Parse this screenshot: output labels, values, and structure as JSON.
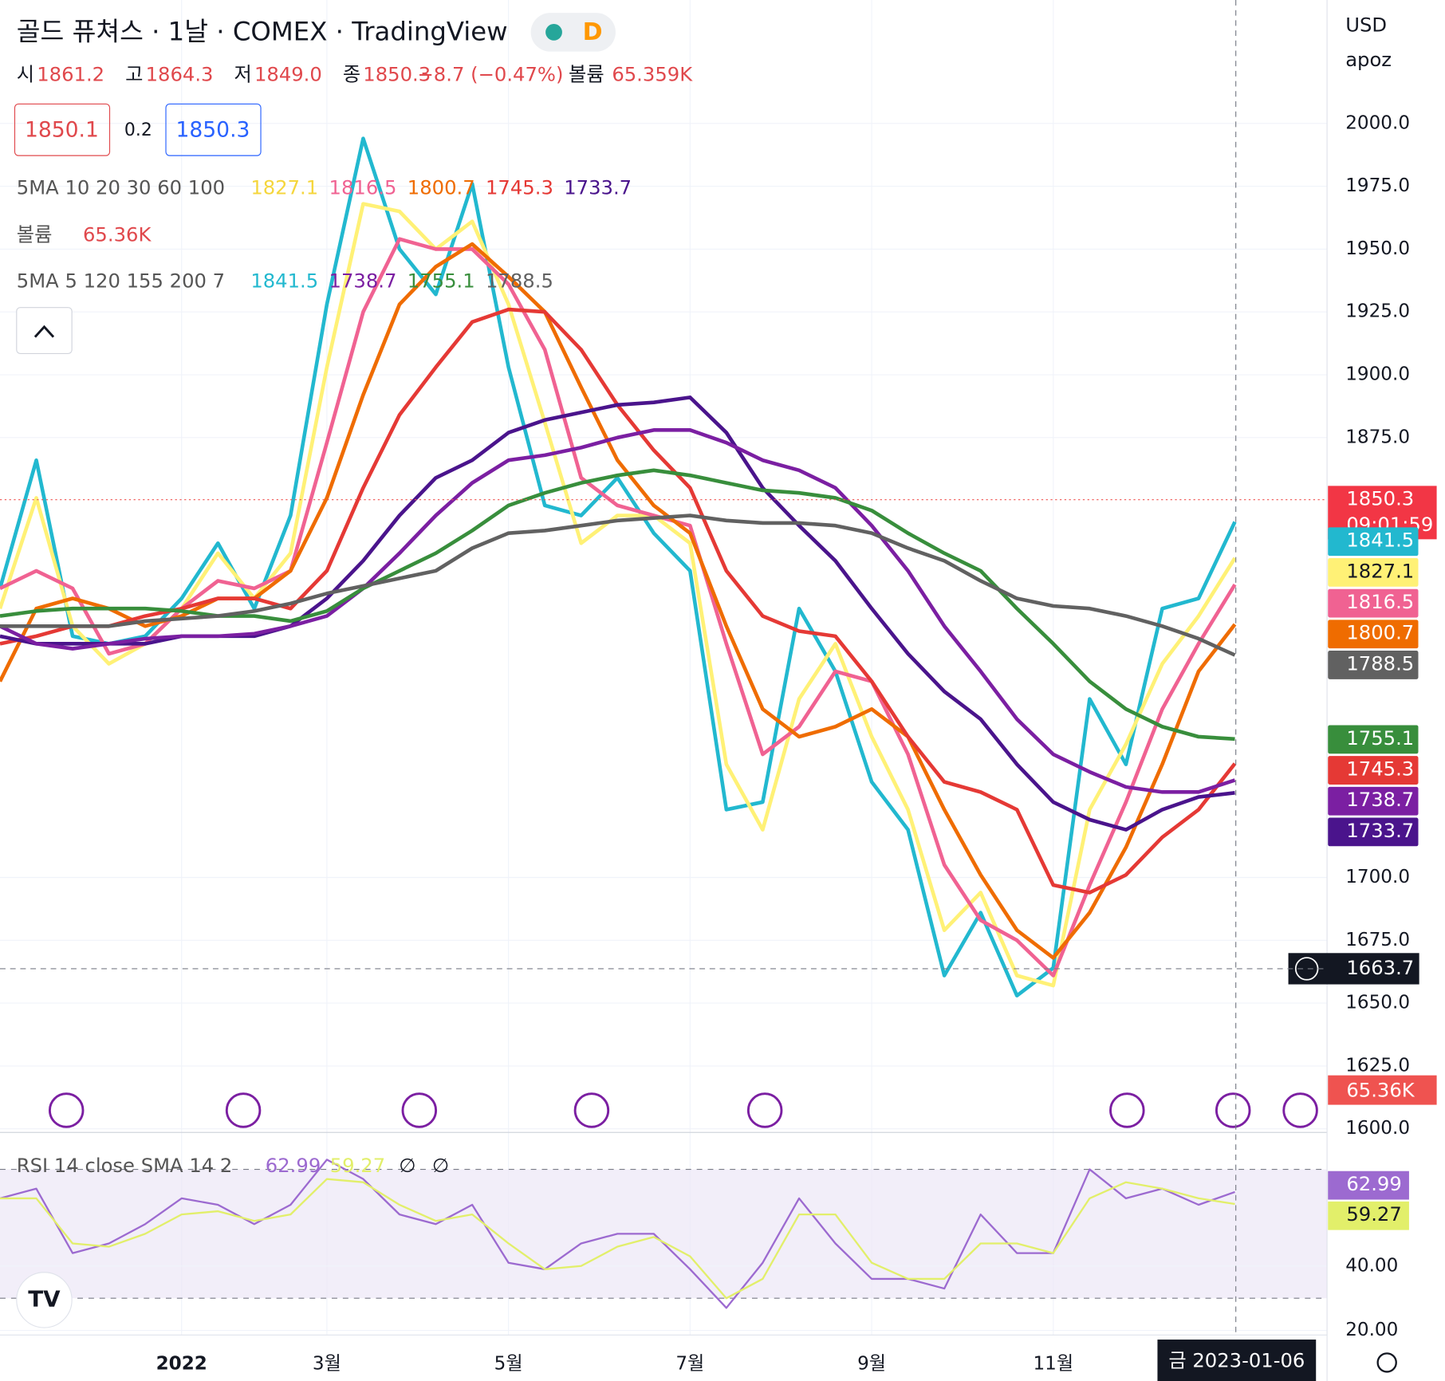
{
  "header": {
    "title": "골드 퓨쳐스 · 1날 · COMEX · TradingView",
    "interval": "D",
    "ohlc": [
      {
        "label": "시",
        "value": "1861.2"
      },
      {
        "label": "고",
        "value": "1864.3"
      },
      {
        "label": "저",
        "value": "1849.0"
      },
      {
        "label": "종",
        "value": "1850.3"
      }
    ],
    "change": "−8.7 (−0.47%)",
    "volume_label": "볼륨",
    "volume": "65.359K",
    "bid": "1850.1",
    "spread": "0.2",
    "ask": "1850.3",
    "currency": "USD",
    "user": "apoz",
    "ma_legend_1": "5MA 10 20 30 60 100",
    "volume_legend": "볼륨",
    "volume_value": "65.36K",
    "ma_legend_2": "5MA 5 120 155 200 7",
    "rsi_legend": "RSI 14 close SMA 14 2",
    "rsi_icons": [
      "∅",
      "∅"
    ],
    "last_time": "09:01:59",
    "crosshair_date": "금 2023-01-06"
  },
  "chart_data": [
    {
      "type": "line",
      "categories": [
        null,
        null,
        null,
        null,
        null,
        "2022",
        null,
        null,
        null,
        "3월",
        null,
        null,
        null,
        null,
        "5월",
        null,
        null,
        null,
        null,
        "7월",
        null,
        null,
        null,
        null,
        "9월",
        null,
        null,
        null,
        null,
        "11월",
        null,
        null,
        null,
        null,
        null
      ],
      "ylim": [
        1599.3,
        2049.1
      ],
      "yticks": [
        {
          "value": 2000,
          "label": "2000.0"
        },
        {
          "value": 1975,
          "label": "1975.0"
        },
        {
          "value": 1950,
          "label": "1950.0"
        },
        {
          "value": 1925,
          "label": "1925.0"
        },
        {
          "value": 1900,
          "label": "1900.0"
        },
        {
          "value": 1875,
          "label": "1875.0"
        },
        {
          "value": 1700,
          "label": "1700.0"
        },
        {
          "value": 1675,
          "label": "1675.0"
        },
        {
          "value": 1650,
          "label": "1650.0"
        },
        {
          "value": 1625,
          "label": "1625.0"
        },
        {
          "value": 1600,
          "label": "1600.0"
        }
      ],
      "grid": true,
      "last_price": 1850.3,
      "crosshair_price": 1663.7,
      "series": [
        {
          "color": "#22b8cf",
          "values": [
            1815,
            1866,
            1796,
            1793,
            1796,
            1811,
            1833,
            1807,
            1844,
            1928,
            1994,
            1950,
            1932,
            1976,
            1903,
            1848,
            1844,
            1859,
            1837,
            1822,
            1727,
            1730,
            1807,
            1782,
            1738,
            1719,
            1661,
            1686,
            1653,
            1664,
            1771,
            1745,
            1807,
            1811,
            1841.5
          ]
        },
        {
          "color": "#fff176",
          "values": [
            1807,
            1851,
            1800,
            1785,
            1793,
            1807,
            1829,
            1811,
            1829,
            1903,
            1968,
            1965,
            1950,
            1961,
            1928,
            1881,
            1833,
            1844,
            1844,
            1833,
            1745,
            1719,
            1771,
            1793,
            1756,
            1727,
            1679,
            1694,
            1661,
            1657,
            1727,
            1753,
            1785,
            1804,
            1827.1
          ]
        },
        {
          "color": "#f06292",
          "values": [
            1815,
            1822,
            1815,
            1789,
            1793,
            1807,
            1818,
            1815,
            1822,
            1873,
            1925,
            1954,
            1950,
            1950,
            1936,
            1910,
            1859,
            1848,
            1844,
            1840,
            1793,
            1749,
            1760,
            1782,
            1778,
            1749,
            1705,
            1683,
            1675,
            1661,
            1697,
            1730,
            1767,
            1793,
            1816.5
          ]
        },
        {
          "color": "#ef6c00",
          "values": [
            1778,
            1807,
            1811,
            1807,
            1800,
            1804,
            1811,
            1811,
            1822,
            1851,
            1892,
            1928,
            1943,
            1952,
            1939,
            1925,
            1895,
            1866,
            1848,
            1837,
            1800,
            1767,
            1756,
            1760,
            1767,
            1756,
            1727,
            1701,
            1679,
            1668,
            1686,
            1712,
            1745,
            1782,
            1800.7
          ]
        },
        {
          "color": "#e53935",
          "values": [
            1793,
            1796,
            1800,
            1800,
            1804,
            1807,
            1811,
            1811,
            1807,
            1822,
            1855,
            1884,
            1903,
            1921,
            1926,
            1925,
            1910,
            1888,
            1870,
            1855,
            1822,
            1804,
            1798,
            1796,
            1778,
            1756,
            1738,
            1734,
            1727,
            1697,
            1694,
            1701,
            1716,
            1727,
            1745.3
          ]
        },
        {
          "color": "#4a148c",
          "values": [
            1796,
            1793,
            1793,
            1793,
            1793,
            1796,
            1796,
            1796,
            1800,
            1811,
            1826,
            1844,
            1859,
            1866,
            1877,
            1882,
            1885,
            1888,
            1889,
            1891,
            1877,
            1855,
            1840,
            1826,
            1807,
            1789,
            1774,
            1763,
            1745,
            1730,
            1723,
            1719,
            1727,
            1732,
            1733.7
          ]
        },
        {
          "color": "#7b1fa2",
          "values": [
            1800,
            1793,
            1791,
            1793,
            1795,
            1796,
            1796,
            1797,
            1800,
            1804,
            1815,
            1829,
            1844,
            1857,
            1866,
            1868,
            1871,
            1875,
            1878,
            1878,
            1873,
            1866,
            1862,
            1855,
            1840,
            1822,
            1800,
            1782,
            1763,
            1749,
            1742,
            1736,
            1734,
            1734,
            1738.7
          ]
        },
        {
          "color": "#388e3c",
          "values": [
            1804,
            1806,
            1807,
            1807,
            1807,
            1806,
            1804,
            1804,
            1802,
            1806,
            1815,
            1822,
            1829,
            1838,
            1848,
            1853,
            1857,
            1860,
            1862,
            1860,
            1857,
            1854,
            1853,
            1851,
            1846,
            1837,
            1829,
            1822,
            1807,
            1793,
            1778,
            1767,
            1760,
            1756,
            1755.1
          ]
        },
        {
          "color": "#616161",
          "values": [
            1800,
            1800,
            1800,
            1800,
            1802,
            1803,
            1804,
            1806,
            1809,
            1813,
            1816,
            1819,
            1822,
            1831,
            1837,
            1838,
            1840,
            1842,
            1843,
            1844,
            1842,
            1841,
            1841,
            1840,
            1837,
            1831,
            1826,
            1818,
            1811,
            1808,
            1807,
            1804,
            1800,
            1795,
            1788.5
          ]
        }
      ]
    },
    {
      "type": "line",
      "ylim": [
        18.6,
        80.9
      ],
      "yticks": [
        {
          "value": 40,
          "label": "40.00"
        },
        {
          "value": 20,
          "label": "20.00"
        }
      ],
      "bands": [
        30,
        70
      ],
      "series": [
        {
          "color": "#9c6ad0",
          "values": [
            61,
            64,
            44,
            47,
            53,
            61,
            59,
            53,
            59,
            73,
            67,
            56,
            53,
            59,
            41,
            39,
            47,
            50,
            50,
            39,
            27,
            41,
            61,
            47,
            36,
            36,
            33,
            56,
            44,
            44,
            70,
            61,
            64,
            59,
            62.99
          ]
        },
        {
          "color": "#e2ef6a",
          "values": [
            61,
            61,
            47,
            46,
            50,
            56,
            57,
            54,
            56,
            67,
            66,
            59,
            54,
            56,
            47,
            39,
            40,
            46,
            49,
            43,
            30,
            36,
            56,
            56,
            41,
            36,
            36,
            47,
            47,
            44,
            61,
            66,
            64,
            61,
            59.27
          ]
        }
      ]
    }
  ]
}
